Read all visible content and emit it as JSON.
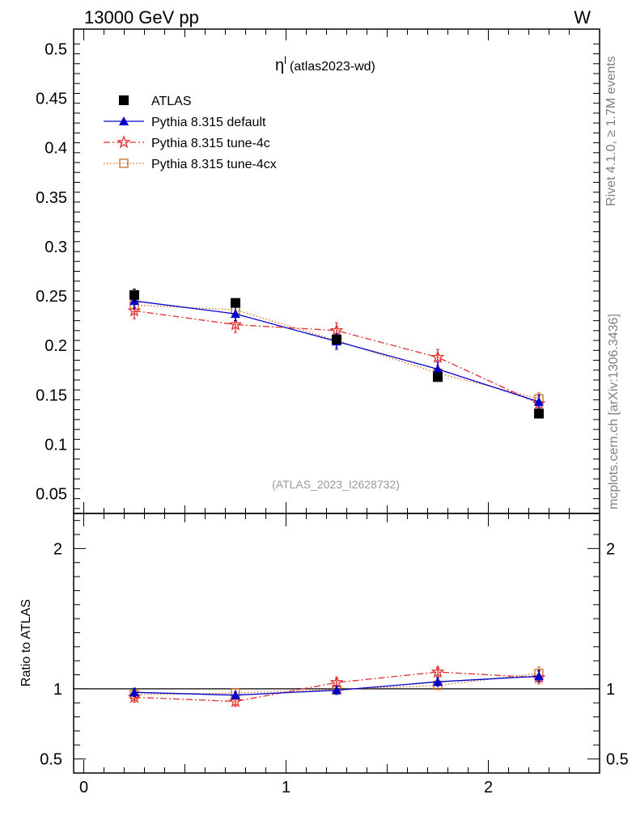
{
  "header": {
    "energy_label": "13000 GeV pp",
    "process_label": "W"
  },
  "plot_title": {
    "main": "η",
    "sup": "l",
    "tag": "(atlas2023-wd)"
  },
  "watermark": "(ATLAS_2023_I2628732)",
  "side_labels": {
    "rivet": "Rivet 4.1.0, ≥ 1.7M events",
    "mcplots": "mcplots.cern.ch [arXiv:1306.3436]"
  },
  "colors": {
    "atlas": "#000000",
    "default": "#0000cc",
    "tune4c": "#e03030",
    "tune4cx": "#d2691e"
  },
  "chart_data": [
    {
      "type": "line",
      "panel": "main",
      "title": "η^l (atlas2023-wd)",
      "xlabel": "",
      "ylabel": "",
      "xlim": [
        -0.05,
        2.55
      ],
      "ylim": [
        0.03,
        0.52
      ],
      "y_ticks": [
        0.05,
        0.1,
        0.15,
        0.2,
        0.25,
        0.3,
        0.35,
        0.4,
        0.45,
        0.5
      ],
      "y_tick_labels": [
        "0.05",
        "0.1",
        "0.15",
        "0.2",
        "0.25",
        "0.3",
        "0.35",
        "0.4",
        "0.45",
        "0.5"
      ],
      "x": [
        0.25,
        0.75,
        1.25,
        1.75,
        2.25
      ],
      "legend_position": "top-left",
      "series": [
        {
          "name": "ATLAS",
          "key": "atlas",
          "style": "markers",
          "values": [
            0.251,
            0.243,
            0.206,
            0.168,
            0.131
          ],
          "errors": [
            0.006,
            0.004,
            0.004,
            0.003,
            0.003
          ]
        },
        {
          "name": "Pythia 8.315 default",
          "key": "default",
          "style": "solid",
          "values": [
            0.245,
            0.232,
            0.204,
            0.176,
            0.143
          ],
          "errors": [
            0.008,
            0.007,
            0.008,
            0.007,
            0.007
          ]
        },
        {
          "name": "Pythia 8.315 tune-4c",
          "key": "tune4c",
          "style": "dashdot",
          "values": [
            0.235,
            0.221,
            0.215,
            0.188,
            0.141
          ],
          "errors": [
            0.008,
            0.008,
            0.008,
            0.008,
            0.007
          ]
        },
        {
          "name": "Pythia 8.315 tune-4cx",
          "key": "tune4cx",
          "style": "dotted",
          "values": [
            0.241,
            0.236,
            0.205,
            0.172,
            0.146
          ],
          "errors": [
            0.007,
            0.007,
            0.007,
            0.006,
            0.006
          ]
        }
      ]
    },
    {
      "type": "line",
      "panel": "ratio",
      "ylabel": "Ratio to ATLAS",
      "xlim": [
        -0.05,
        2.55
      ],
      "ylim": [
        0.4,
        2.25
      ],
      "y_ticks": [
        0.5,
        1,
        2
      ],
      "y_tick_labels": [
        "0.5",
        "1",
        "2"
      ],
      "x_ticks": [
        0,
        1,
        2
      ],
      "x_tick_labels": [
        "0",
        "1",
        "2"
      ],
      "reference_line": 1,
      "x": [
        0.25,
        0.75,
        1.25,
        1.75,
        2.25
      ],
      "series": [
        {
          "name": "Pythia 8.315 default",
          "key": "default",
          "style": "solid",
          "values": [
            0.975,
            0.955,
            0.99,
            1.05,
            1.09
          ],
          "errors": [
            0.03,
            0.025,
            0.03,
            0.03,
            0.04
          ]
        },
        {
          "name": "Pythia 8.315 tune-4c",
          "key": "tune4c",
          "style": "dashdot",
          "values": [
            0.94,
            0.91,
            1.045,
            1.12,
            1.08
          ],
          "errors": [
            0.035,
            0.035,
            0.035,
            0.035,
            0.045
          ]
        },
        {
          "name": "Pythia 8.315 tune-4cx",
          "key": "tune4cx",
          "style": "dotted",
          "values": [
            0.96,
            0.97,
            0.995,
            1.025,
            1.11
          ],
          "errors": [
            0.03,
            0.03,
            0.03,
            0.03,
            0.045
          ]
        }
      ]
    }
  ]
}
